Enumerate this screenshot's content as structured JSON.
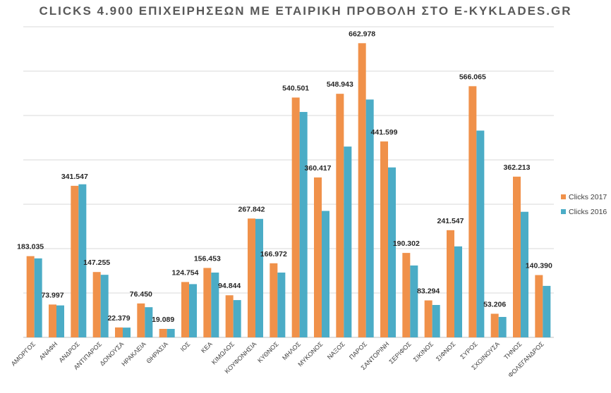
{
  "chart_data": {
    "type": "bar",
    "title": "CLICKS 4.900 ΕΠΙΧΕΙΡΗΣΕΩΝ ΜΕ ΕΤΑΙΡΙΚΗ ΠΡΟΒΟΛΗ ΣΤΟ E-KYKLADES.GR",
    "categories": [
      "ΑΜΟΡΓΟΣ",
      "ΑΝΑΦΗ",
      "ΑΝΔΡΟΣ",
      "ΑΝΤΙΠΑΡΟΣ",
      "ΔΟΝΟΥΣΑ",
      "ΗΡΑΚΛΕΙΑ",
      "ΘΗΡΑΣΙΑ",
      "ΙΟΣ",
      "ΚΕΑ",
      "ΚΙΜΩΛΟΣ",
      "ΚΟΥΦΟΝΗΣΙΑ",
      "ΚΥΘΝΟΣ",
      "ΜΗΛΟΣ",
      "ΜΥΚΟΝΟΣ",
      "ΝΑΞΟΣ",
      "ΠΑΡΟΣ",
      "ΣΑΝΤΟΡΙΝΗ",
      "ΣΕΡΙΦΟΣ",
      "ΣΙΚΙΝΟΣ",
      "ΣΙΦΝΟΣ",
      "ΣΥΡΟΣ",
      "ΣΧΟΙΝΟΥΣΑ",
      "ΤΗΝΟΣ",
      "ΦΟΛΕΓΑΝΔΡΟΣ"
    ],
    "series": [
      {
        "name": "Clicks 2017",
        "color": "#F0914A",
        "values": [
          183035,
          73997,
          341547,
          147255,
          22379,
          76450,
          19089,
          124754,
          156453,
          94844,
          267842,
          166972,
          540501,
          360417,
          548943,
          662978,
          441599,
          190302,
          83294,
          241547,
          566065,
          53206,
          362213,
          140390
        ],
        "labels": [
          "183.035",
          "73.997",
          "341.547",
          "147.255",
          "22.379",
          "76.450",
          "19.089",
          "124.754",
          "156.453",
          "94.844",
          "267.842",
          "166.972",
          "540.501",
          "360.417",
          "548.943",
          "662.978",
          "441.599",
          "190.302",
          "83.294",
          "241.547",
          "566.065",
          "53.206",
          "362.213",
          "140.390"
        ]
      },
      {
        "name": "Clicks 2016",
        "color": "#4BACC6",
        "values": [
          178000,
          72000,
          345000,
          141000,
          22000,
          68000,
          19000,
          120000,
          146000,
          84000,
          267000,
          146000,
          508000,
          285000,
          430000,
          536000,
          383000,
          162000,
          73000,
          205000,
          466000,
          46000,
          283000,
          116000
        ]
      }
    ],
    "ylim": [
      0,
      700000
    ],
    "grid": true,
    "legend": "right"
  }
}
